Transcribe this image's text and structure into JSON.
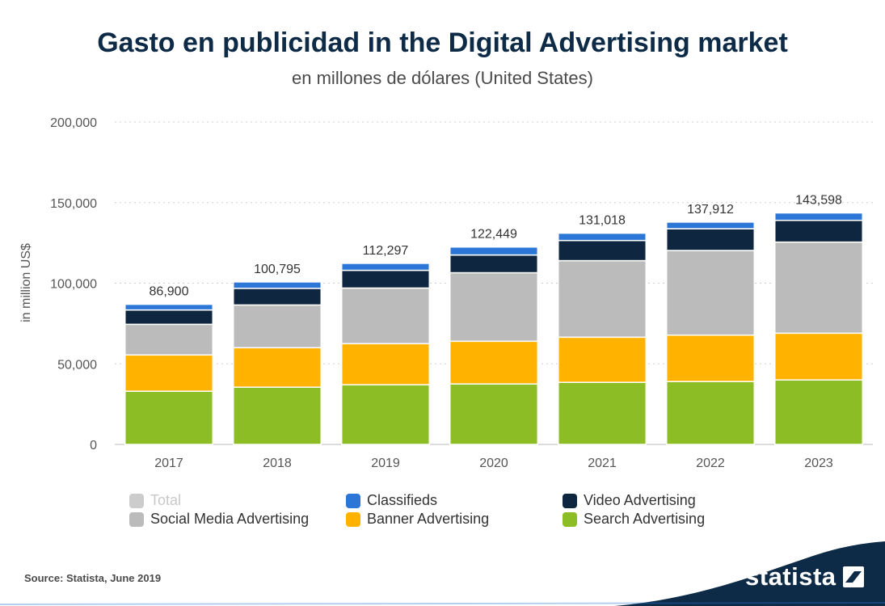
{
  "header": {
    "title": "Gasto en publicidad in the Digital Advertising market",
    "subtitle": "en millones de dólares (United States)"
  },
  "chart_data": {
    "type": "bar",
    "stacked": true,
    "categories": [
      "2017",
      "2018",
      "2019",
      "2020",
      "2021",
      "2022",
      "2023"
    ],
    "series": [
      {
        "name": "Search Advertising",
        "color": "#8cbd24",
        "values": [
          33000,
          35500,
          37000,
          37500,
          38500,
          39000,
          40000
        ]
      },
      {
        "name": "Banner Advertising",
        "color": "#ffb300",
        "values": [
          22500,
          24500,
          25500,
          26500,
          28000,
          28800,
          29000
        ]
      },
      {
        "name": "Social Media Advertising",
        "color": "#bbbbbb",
        "values": [
          19000,
          26500,
          34500,
          42500,
          47500,
          52500,
          56500
        ]
      },
      {
        "name": "Video Advertising",
        "color": "#0f2640",
        "values": [
          8900,
          10300,
          11000,
          11000,
          12500,
          13500,
          13500
        ]
      },
      {
        "name": "Classifieds",
        "color": "#2b76d6",
        "values": [
          3500,
          3995,
          4297,
          4949,
          4518,
          4112,
          4598
        ]
      }
    ],
    "totals": [
      86900,
      100795,
      112297,
      122449,
      131018,
      137912,
      143598
    ],
    "total_labels": [
      "86,900",
      "100,795",
      "112,297",
      "122,449",
      "131,018",
      "137,912",
      "143,598"
    ],
    "ylabel": "in million US$",
    "ylim": [
      0,
      200000
    ],
    "yticks": [
      0,
      50000,
      100000,
      150000,
      200000
    ],
    "ytick_labels": [
      "0",
      "50,000",
      "100,000",
      "150,000",
      "200,000"
    ],
    "grid": true,
    "legend_position": "bottom"
  },
  "legend": [
    {
      "label": "Total",
      "color": "#cccccc",
      "muted": true
    },
    {
      "label": "Classifieds",
      "color": "#2b76d6"
    },
    {
      "label": "Video Advertising",
      "color": "#0f2640"
    },
    {
      "label": "Social Media Advertising",
      "color": "#bbbbbb"
    },
    {
      "label": "Banner Advertising",
      "color": "#ffb300"
    },
    {
      "label": "Search Advertising",
      "color": "#8cbd24"
    }
  ],
  "footer": {
    "source": "Source: Statista, June 2019",
    "brand": "statista",
    "brand_color": "#0d2a47"
  }
}
